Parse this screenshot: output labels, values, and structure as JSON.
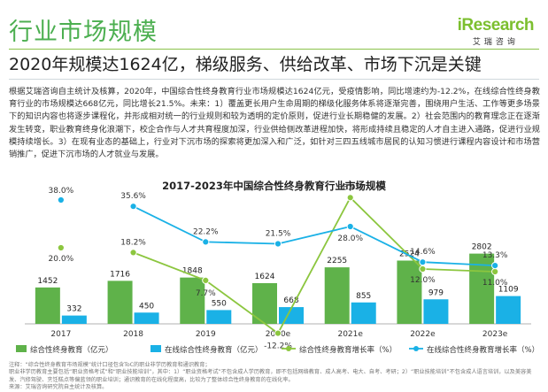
{
  "header": {
    "title": "行业市场规模",
    "logo_text": "iResearch",
    "logo_sub": "艾瑞咨询",
    "subtitle": "2020年规模达1624亿，梯级服务、供给改革、市场下沉是关键"
  },
  "body_text": "根据艾瑞咨询自主统计及核算，2020年，中国综合性终身教育行业市场规模达1624亿元，受疫情影响，同比增速约为-12.2%，在线综合性终身教育行业的市场规模达668亿元，同比增长21.5%。未来：1）覆盖更长用户生命周期的梯级化服务体系将逐渐完善，围绕用户生活、工作等更多场景下的知识内容也将逐步课程化，并形成相对统一的行业规则和较为透明的定价原则，促进行业长期稳健的发展。2）社会范围内的教育理念正在逐渐发生转变，职业教育终身化浪潮下，校企合作与人才共育程度加深，行业供给侧改革进程加快，将形成持续且稳定的人才自主进入通路，促进行业规模持续增长。3）在现有业态的基础上，行业对下沉市场的探索将更加深入和广泛，如针对三四五线城市居民的认知习惯进行课程内容设计和市场营销推广，促进下沉市场的人才就业与发展。",
  "chart_data": {
    "type": "bar",
    "title": "2017-2023年中国综合性终身教育行业市场规模",
    "categories": [
      "2017",
      "2018",
      "2019",
      "2020e",
      "2021e",
      "2022e",
      "2023e"
    ],
    "series": [
      {
        "name": "综合性终身教育（亿元）",
        "kind": "bar",
        "color": "#5fb24a",
        "values": [
          1452,
          1716,
          1848,
          1624,
          2255,
          2524,
          2802
        ]
      },
      {
        "name": "在线综合性终身教育（亿元）",
        "kind": "bar",
        "color": "#1ab1e6",
        "values": [
          332,
          450,
          550,
          668,
          855,
          979,
          1109
        ]
      },
      {
        "name": "综合性终身教育增长率（%）",
        "kind": "line",
        "color": "#8cc63f",
        "values": [
          null,
          18.2,
          7.7,
          -12.2,
          38.9,
          12.0,
          11.0
        ],
        "labels": [
          "",
          "18.2%",
          "7.7%",
          "-12.2%",
          "38.9%",
          "12.0%",
          "11.0%"
        ]
      },
      {
        "name": "在线综合性终身教育增长率（%）",
        "kind": "line",
        "color": "#1ab1e6",
        "values": [
          null,
          35.6,
          22.2,
          21.5,
          28.0,
          14.6,
          13.3
        ],
        "labels": [
          "",
          "35.6%",
          "22.2%",
          "21.5%",
          "28.0%",
          "14.6%",
          "13.3%"
        ]
      }
    ],
    "extra_labels": {
      "online_2017": "38.0%",
      "total_2017": "20.0%"
    },
    "legend_position": "bottom",
    "grid": false
  },
  "footer": {
    "note1": "注释：“综合性终身教育市场规模”统计口径包含ToC的职业非学历教育和通识教育；",
    "note2": "职业非学历教育主要包括“职业资格考试”和“职业技能培训”，其中：1）“职业资格考试”不包含成人学历教育，即不包括网络教育、成人高考、电大、自考、考研；2）“职业技能培训”不包含成人语言培训，以及美容美发、汽修驾驶、烹饪糕点等偏蓝领的职业培训；通识教育的在线化程度高，比较为了整体综合性终身教育的在线化率。",
    "source": "来源：艾瑞咨询研究院自主统计及核算。"
  }
}
